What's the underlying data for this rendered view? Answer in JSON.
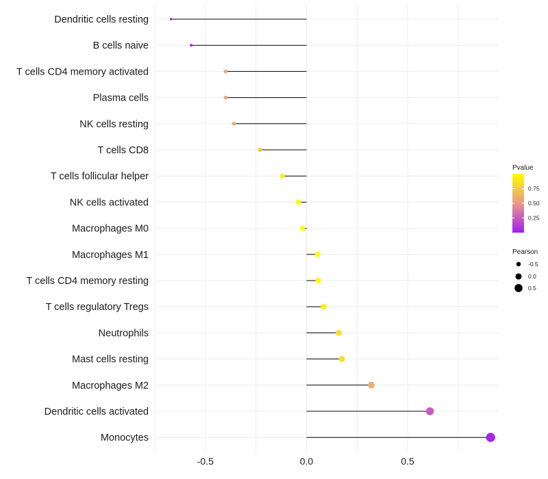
{
  "chart_data": {
    "type": "lollipop",
    "title": "",
    "xlabel": "",
    "ylabel": "",
    "xlim": [
      -0.75,
      0.95
    ],
    "x_ticks": [
      -0.5,
      0.0,
      0.5
    ],
    "x_tick_labels": [
      "-0.5",
      "0.0",
      "0.5"
    ],
    "grid": true,
    "categories": [
      "Dendritic cells resting",
      "B cells naive",
      "T cells CD4 memory activated",
      "Plasma cells",
      "NK cells resting",
      "T cells CD8",
      "T cells follicular helper",
      "NK cells activated",
      "Macrophages M0",
      "Macrophages M1",
      "T cells CD4 memory resting",
      "T cells regulatory  Tregs",
      "Neutrophils",
      "Mast cells resting",
      "Macrophages M2",
      "Dendritic cells activated",
      "Monocytes"
    ],
    "pearson": [
      -0.67,
      -0.57,
      -0.4,
      -0.4,
      -0.36,
      -0.23,
      -0.12,
      -0.04,
      -0.02,
      0.055,
      0.058,
      0.085,
      0.16,
      0.175,
      0.32,
      0.61,
      0.91
    ],
    "pvalue": [
      0.02,
      0.08,
      0.55,
      0.55,
      0.6,
      0.75,
      0.92,
      0.97,
      0.99,
      0.97,
      0.97,
      0.93,
      0.85,
      0.83,
      0.6,
      0.25,
      0.03
    ],
    "color_legend": {
      "title": "Pvalue",
      "ticks": [
        0.25,
        0.5,
        0.75
      ],
      "tick_labels": [
        "0.25",
        "0.50",
        "0.75"
      ],
      "range": [
        0.0,
        1.0
      ],
      "low_color": "#a020f0",
      "mid_color": "#e89a8a",
      "high_color": "#ffff00",
      "placement": "right"
    },
    "size_legend": {
      "title": "Pearson",
      "values": [
        -0.5,
        0.0,
        0.5
      ],
      "labels": [
        "-0.5",
        "0.0",
        "0.5"
      ],
      "placement": "right"
    }
  }
}
